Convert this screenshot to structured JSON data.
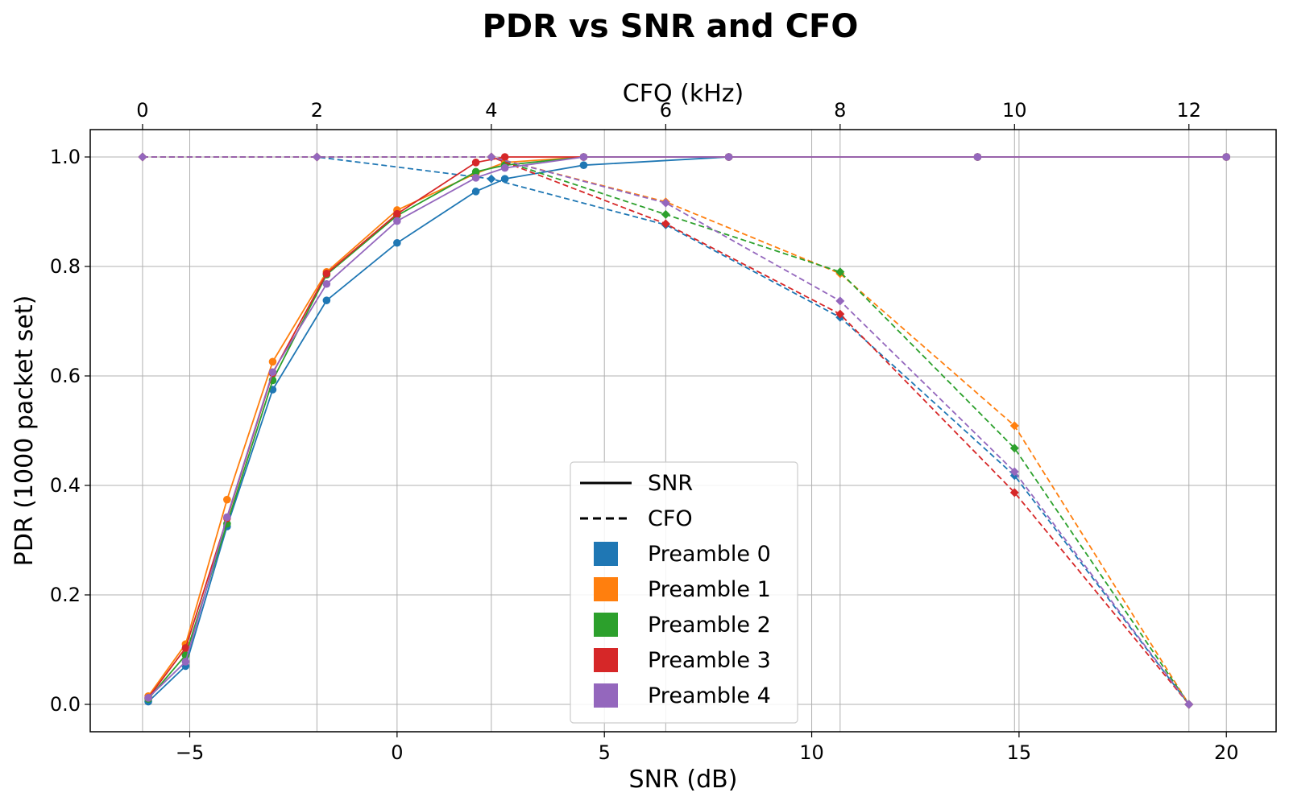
{
  "chart_data": {
    "type": "line",
    "title": "PDR vs SNR and CFO",
    "ylabel": "PDR (1000 packet set)",
    "ylim": [
      -0.05,
      1.05
    ],
    "yticks": [
      0.0,
      0.2,
      0.4,
      0.6,
      0.8,
      1.0
    ],
    "ytick_labels": [
      "0.0",
      "0.2",
      "0.4",
      "0.6",
      "0.8",
      "1.0"
    ],
    "grid": true,
    "x_axis_bottom": {
      "label": "SNR (dB)",
      "lim": [
        -7.4,
        21.2
      ],
      "ticks": [
        -5,
        0,
        5,
        10,
        15,
        20
      ],
      "tick_labels": [
        "−5",
        "0",
        "5",
        "10",
        "15",
        "20"
      ]
    },
    "x_axis_top": {
      "label": "CFO (kHz)",
      "lim": [
        -0.6,
        13.0
      ],
      "ticks": [
        0,
        2,
        4,
        6,
        8,
        10,
        12
      ],
      "tick_labels": [
        "0",
        "2",
        "4",
        "6",
        "8",
        "10",
        "12"
      ]
    },
    "snr_x": [
      -6.0,
      -5.1,
      -4.1,
      -3.0,
      -1.7,
      0.0,
      1.9,
      2.6,
      4.5,
      8.0,
      14.0,
      20.0
    ],
    "cfo_x": [
      0,
      2,
      4,
      6,
      8,
      10,
      12
    ],
    "series": [
      {
        "name": "Preamble 0",
        "color": "#1f77b4",
        "snr": [
          0.005,
          0.07,
          0.325,
          0.575,
          0.738,
          0.843,
          0.937,
          0.96,
          0.985,
          1.0,
          1.0,
          1.0
        ],
        "cfo": [
          1.0,
          1.0,
          0.96,
          0.876,
          0.707,
          0.418,
          0.0
        ]
      },
      {
        "name": "Preamble 1",
        "color": "#ff7f0e",
        "snr": [
          0.015,
          0.11,
          0.374,
          0.626,
          0.79,
          0.903,
          0.97,
          0.99,
          1.0,
          1.0,
          1.0,
          1.0
        ],
        "cfo": [
          1.0,
          1.0,
          1.0,
          0.918,
          0.787,
          0.509,
          0.0
        ]
      },
      {
        "name": "Preamble 2",
        "color": "#2ca02c",
        "snr": [
          0.01,
          0.09,
          0.33,
          0.592,
          0.785,
          0.893,
          0.973,
          0.985,
          1.0,
          1.0,
          1.0,
          1.0
        ],
        "cfo": [
          1.0,
          1.0,
          1.0,
          0.895,
          0.79,
          0.468,
          0.0
        ]
      },
      {
        "name": "Preamble 3",
        "color": "#d62728",
        "snr": [
          0.012,
          0.103,
          0.34,
          0.605,
          0.787,
          0.896,
          0.99,
          1.0,
          1.0,
          1.0,
          1.0,
          1.0
        ],
        "cfo": [
          1.0,
          1.0,
          1.0,
          0.878,
          0.713,
          0.387,
          0.0
        ]
      },
      {
        "name": "Preamble 4",
        "color": "#9467bd",
        "snr": [
          0.012,
          0.078,
          0.342,
          0.607,
          0.768,
          0.883,
          0.962,
          0.98,
          1.0,
          1.0,
          1.0,
          1.0
        ],
        "cfo": [
          1.0,
          1.0,
          1.0,
          0.916,
          0.737,
          0.425,
          0.0
        ]
      }
    ],
    "legend": {
      "placement": "lower center",
      "style_entries": [
        {
          "label": "SNR",
          "linestyle": "solid"
        },
        {
          "label": "CFO",
          "linestyle": "dashed"
        }
      ]
    }
  }
}
